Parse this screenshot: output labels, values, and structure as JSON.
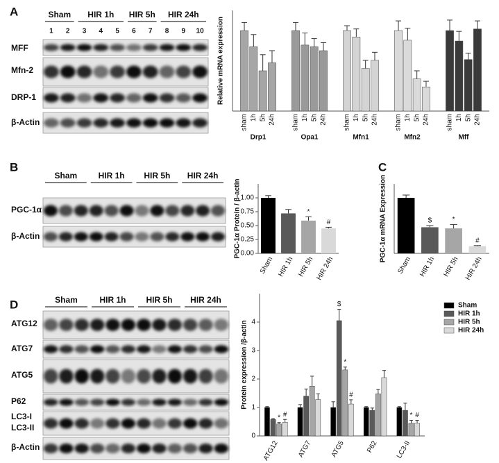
{
  "panel_labels": [
    "A",
    "B",
    "C",
    "D"
  ],
  "blot_a": {
    "groups": [
      "Sham",
      "HIR 1h",
      "HIR 5h",
      "HIR 24h"
    ],
    "lanes": [
      "1",
      "2",
      "3",
      "4",
      "5",
      "6",
      "7",
      "8",
      "9",
      "10"
    ],
    "rows": [
      "MFF",
      "Mfn-2",
      "DRP-1",
      "β-Actin"
    ]
  },
  "blot_b": {
    "groups": [
      "Sham",
      "HIR 1h",
      "HIR 5h",
      "HIR 24h"
    ],
    "rows": [
      "PGC-1α",
      "β-Actin"
    ]
  },
  "blot_d": {
    "groups": [
      "Sham",
      "HIR 1h",
      "HIR 5h",
      "HIR 24h"
    ],
    "rows": [
      "ATG12",
      "ATG7",
      "ATG5",
      "P62",
      "LC3-I",
      "LC3-II",
      "β-Actin"
    ]
  },
  "chart_data": [
    {
      "type": "bar",
      "ylabel": "Relative mRNA expression",
      "ylim": [
        0,
        1.25
      ],
      "categories": [
        "Drp1",
        "Opa1",
        "Mfn1",
        "Mfn2",
        "Mff"
      ],
      "category_colors": [
        "#a6a6a6",
        "#9a9a9a",
        "#d4d4d4",
        "#dadada",
        "#3a3a3a"
      ],
      "series": [
        {
          "name": "sham",
          "values": [
            1.0,
            1.0,
            1.0,
            1.0,
            1.0
          ],
          "errors": [
            0.1,
            0.1,
            0.06,
            0.12,
            0.13
          ]
        },
        {
          "name": "1h",
          "values": [
            0.8,
            0.82,
            0.92,
            0.88,
            0.87
          ],
          "errors": [
            0.15,
            0.15,
            0.1,
            0.15,
            0.12
          ]
        },
        {
          "name": "5h",
          "values": [
            0.5,
            0.8,
            0.53,
            0.4,
            0.64
          ],
          "errors": [
            0.2,
            0.1,
            0.1,
            0.1,
            0.08
          ]
        },
        {
          "name": "24h",
          "values": [
            0.6,
            0.75,
            0.63,
            0.3,
            1.02
          ],
          "errors": [
            0.15,
            0.1,
            0.1,
            0.07,
            0.1
          ]
        }
      ]
    },
    {
      "type": "bar",
      "ylabel": "PGC-1α Protein / β-actin",
      "ylim": [
        0,
        1.25
      ],
      "yticks": [
        {
          "value": 0,
          "label": "0.00"
        },
        {
          "value": 0.25,
          "label": "0.25"
        },
        {
          "value": 0.5,
          "label": "0.50"
        },
        {
          "value": 0.75,
          "label": "0.75"
        },
        {
          "value": 1.0,
          "label": "1.00"
        }
      ],
      "categories": [
        "Sham",
        "HIR 1h",
        "HIR 5h",
        "HIR 24h"
      ],
      "values": [
        1.0,
        0.72,
        0.59,
        0.45
      ],
      "errors": [
        0.04,
        0.07,
        0.07,
        0.02
      ],
      "colors": [
        "#000000",
        "#595959",
        "#a6a6a6",
        "#d9d9d9"
      ],
      "annotations": [
        null,
        null,
        "*",
        "#"
      ]
    },
    {
      "type": "bar",
      "ylabel": "PGC-1α mRNA Expression",
      "ylim": [
        0,
        1.25
      ],
      "categories": [
        "Sham",
        "HIR 1h",
        "HIR 5h",
        "HIR 24h"
      ],
      "values": [
        1.0,
        0.47,
        0.45,
        0.13
      ],
      "errors": [
        0.05,
        0.03,
        0.07,
        0.01
      ],
      "colors": [
        "#000000",
        "#595959",
        "#a6a6a6",
        "#d9d9d9"
      ],
      "annotations": [
        null,
        "$",
        "*",
        "#"
      ]
    },
    {
      "type": "bar",
      "ylabel": "Protein expression /β-actin",
      "ylim": [
        0,
        5
      ],
      "yticks": [
        0,
        1,
        2,
        3,
        4
      ],
      "legend": "upper right",
      "categories": [
        "ATG12",
        "ATG7",
        "ATG5",
        "P62",
        "LC3-II"
      ],
      "series": [
        {
          "name": "Sham",
          "color": "#000000",
          "values": [
            1.0,
            1.0,
            1.0,
            1.0,
            1.0
          ],
          "errors": [
            0.03,
            0.1,
            0.2,
            0.03,
            0.03
          ],
          "annotations": [
            null,
            null,
            null,
            null,
            null
          ]
        },
        {
          "name": "HIR 1h",
          "color": "#595959",
          "values": [
            0.58,
            1.4,
            4.05,
            0.9,
            0.9
          ],
          "errors": [
            0.03,
            0.25,
            0.4,
            0.08,
            0.25
          ],
          "annotations": [
            null,
            null,
            "$",
            null,
            null
          ]
        },
        {
          "name": "HIR 5h",
          "color": "#a6a6a6",
          "values": [
            0.42,
            1.75,
            2.32,
            1.48,
            0.45
          ],
          "errors": [
            0.05,
            0.35,
            0.1,
            0.15,
            0.1
          ],
          "annotations": [
            "*",
            null,
            "*",
            null,
            "*"
          ]
        },
        {
          "name": "HIR 24h",
          "color": "#d9d9d9",
          "values": [
            0.48,
            1.28,
            1.12,
            2.05,
            0.45
          ],
          "errors": [
            0.1,
            0.2,
            0.15,
            0.25,
            0.1
          ],
          "annotations": [
            "#",
            null,
            "#",
            null,
            "#"
          ]
        }
      ]
    }
  ]
}
